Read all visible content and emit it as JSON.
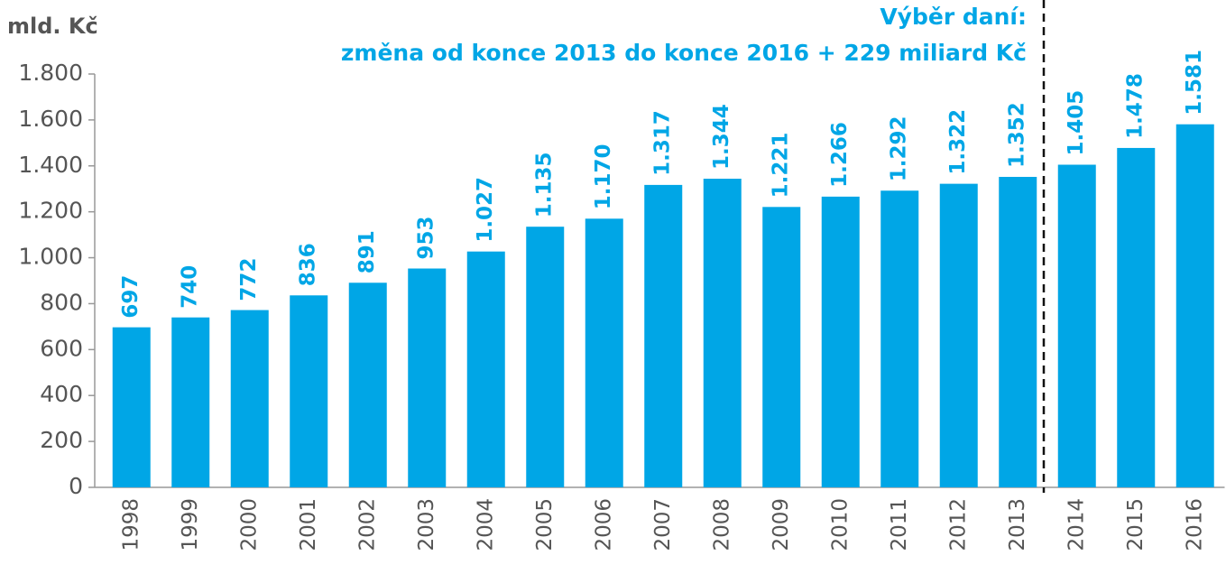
{
  "chart_data": {
    "type": "bar",
    "y_axis_label": "mld. Kč",
    "annotations": [
      "Výběr daní:",
      "změna od konce 2013 do konce 2016 + 229 miliard Kč"
    ],
    "categories": [
      "1998",
      "1999",
      "2000",
      "2001",
      "2002",
      "2003",
      "2004",
      "2005",
      "2006",
      "2007",
      "2008",
      "2009",
      "2010",
      "2011",
      "2012",
      "2013",
      "2014",
      "2015",
      "2016"
    ],
    "values": [
      697,
      740,
      772,
      836,
      891,
      953,
      1027,
      1135,
      1170,
      1317,
      1344,
      1221,
      1266,
      1292,
      1322,
      1352,
      1405,
      1478,
      1581
    ],
    "value_labels": [
      "697",
      "740",
      "772",
      "836",
      "891",
      "953",
      "1.027",
      "1.135",
      "1.170",
      "1.317",
      "1.344",
      "1.221",
      "1.266",
      "1.292",
      "1.322",
      "1.352",
      "1.405",
      "1.478",
      "1.581"
    ],
    "color": "#00a6e6",
    "ylim": [
      0,
      1800
    ],
    "yticks": [
      0,
      200,
      400,
      600,
      800,
      {
        "value": 1000,
        "label": "1.000"
      },
      {
        "value": 1200,
        "label": "1.200"
      },
      {
        "value": 1400,
        "label": "1.400"
      },
      {
        "value": 1600,
        "label": "1.600"
      },
      {
        "value": 1800,
        "label": "1.800"
      }
    ],
    "grid": false
  }
}
